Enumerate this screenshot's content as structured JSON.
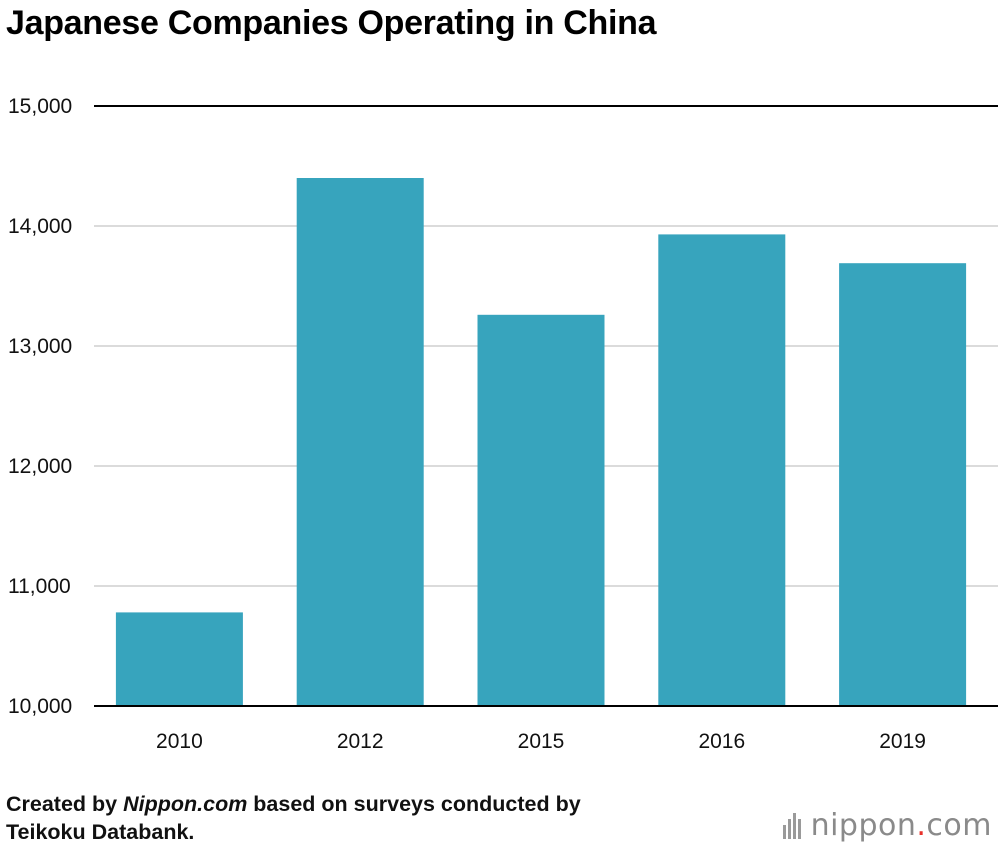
{
  "header": {
    "title": "Japanese Companies Operating in China"
  },
  "chart_data": {
    "type": "bar",
    "title": "Japanese Companies Operating in China",
    "xlabel": "",
    "ylabel": "",
    "categories": [
      "2010",
      "2012",
      "2015",
      "2016",
      "2019"
    ],
    "values": [
      10780,
      14400,
      13260,
      13930,
      13690
    ],
    "ylim": [
      10000,
      15000
    ],
    "yticks": [
      10000,
      11000,
      12000,
      13000,
      14000,
      15000
    ],
    "ytick_labels": [
      "10,000",
      "11,000",
      "12,000",
      "13,000",
      "14,000",
      "15,000"
    ],
    "grid": true,
    "legend": "none",
    "bar_color": "#37a4bd"
  },
  "footer": {
    "source_prefix": "Created by ",
    "source_name": "Nippon.com",
    "source_suffix": " based on surveys conducted by",
    "source_line2": "Teikoku Databank."
  },
  "logo": {
    "text_main": "nippon",
    "text_dot": ".",
    "text_tld": "com"
  }
}
